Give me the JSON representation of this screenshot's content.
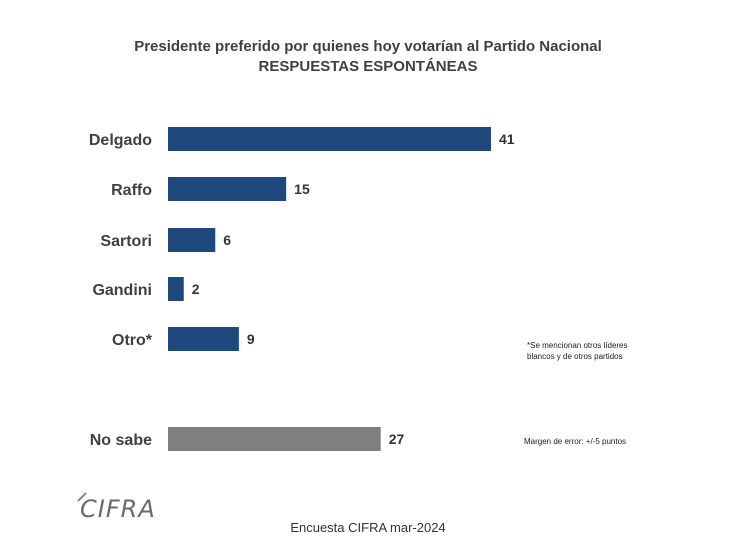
{
  "chart_data": {
    "type": "bar",
    "orientation": "horizontal",
    "title": "Presidente preferido por quienes hoy votarían al Partido Nacional",
    "subtitle": "RESPUESTAS ESPONTÁNEAS",
    "categories": [
      "Delgado",
      "Raffo",
      "Sartori",
      "Gandini",
      "Otro*",
      "No sabe"
    ],
    "values": [
      41,
      15,
      6,
      2,
      9,
      27
    ],
    "colors": [
      "#1f497d",
      "#1f497d",
      "#1f497d",
      "#1f497d",
      "#1f497d",
      "#7f7f7f"
    ],
    "xlim": [
      0,
      41
    ],
    "grid": false
  },
  "notes": {
    "others_line1": "*Se mencionan otros líderes",
    "others_line2": "blancos y de otros partidos",
    "margin": "Margen de error: +/-5 puntos"
  },
  "logo_text": "CIFRA",
  "footer": "Encuesta CIFRA mar-2024"
}
